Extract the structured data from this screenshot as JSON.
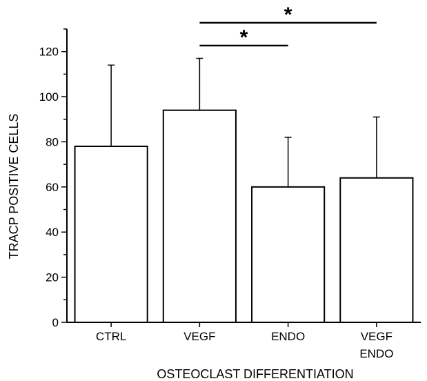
{
  "chart_data": {
    "type": "bar",
    "title": "",
    "xlabel": "OSTEOCLAST DIFFERENTIATION",
    "ylabel": "TRACP POSITIVE CELLS",
    "ylim": [
      0,
      130
    ],
    "yticks": [
      0,
      20,
      40,
      60,
      80,
      100,
      120
    ],
    "categories": [
      {
        "lines": [
          "CTRL"
        ]
      },
      {
        "lines": [
          "VEGF"
        ]
      },
      {
        "lines": [
          "ENDO"
        ]
      },
      {
        "lines": [
          "VEGF",
          "ENDO"
        ]
      }
    ],
    "values": [
      78,
      94,
      60,
      64
    ],
    "error_upper": [
      114,
      117,
      82,
      91
    ],
    "significance": [
      {
        "from": 1,
        "to": 2,
        "label": "*"
      },
      {
        "from": 1,
        "to": 3,
        "label": "*"
      }
    ],
    "grid": false,
    "legend": "none"
  }
}
